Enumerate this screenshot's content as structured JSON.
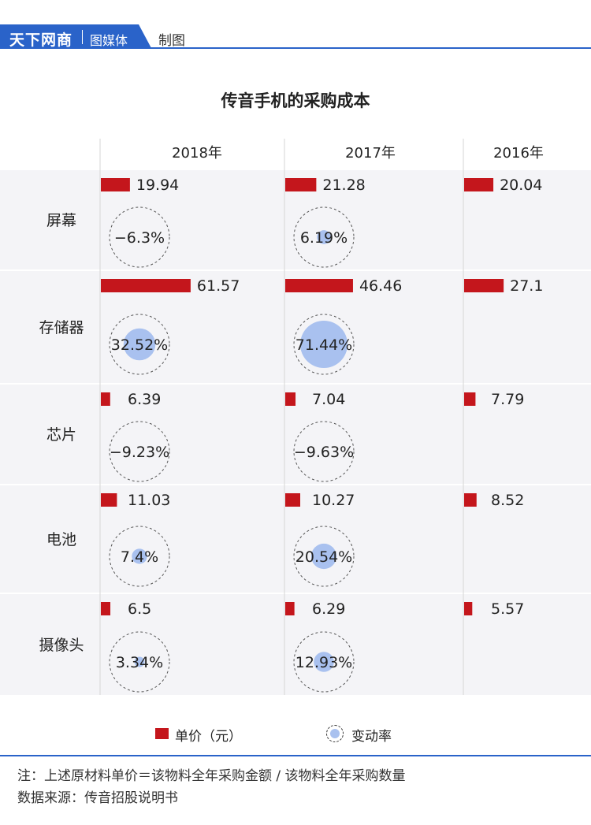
{
  "header": {
    "brand_name": "天下网商",
    "brand_sub": "图媒体",
    "tag": "制图",
    "colors": {
      "brand": "#2a63c9"
    }
  },
  "chart_data": {
    "type": "bar",
    "title": "传音手机的采购成本",
    "columns": [
      "2018年",
      "2017年",
      "2016年"
    ],
    "categories": [
      "屏幕",
      "存储器",
      "芯片",
      "电池",
      "摄像头"
    ],
    "series": [
      {
        "name": "单价（元）",
        "color": "#c4161c",
        "values": [
          [
            19.94,
            21.28,
            20.04
          ],
          [
            61.57,
            46.46,
            27.1
          ],
          [
            6.39,
            7.04,
            7.79
          ],
          [
            11.03,
            10.27,
            8.52
          ],
          [
            6.5,
            6.29,
            5.57
          ]
        ],
        "labels": [
          [
            "19.94",
            "21.28",
            "20.04"
          ],
          [
            "61.57",
            "46.46",
            "27.1"
          ],
          [
            "6.39",
            "7.04",
            "7.79"
          ],
          [
            "11.03",
            "10.27",
            "8.52"
          ],
          [
            "6.5",
            "6.29",
            "5.57"
          ]
        ]
      },
      {
        "name": "变动率",
        "color": "#a9c1ef",
        "values": [
          [
            -6.3,
            6.19
          ],
          [
            32.52,
            71.44
          ],
          [
            -9.23,
            -9.63
          ],
          [
            7.4,
            20.54
          ],
          [
            3.34,
            12.93
          ]
        ],
        "labels": [
          [
            "−6.3%",
            "6.19%"
          ],
          [
            "32.52%",
            "71.44%"
          ],
          [
            "−9.23%",
            "−9.63%"
          ],
          [
            "7.4%",
            "20.54%"
          ],
          [
            "3.34%",
            "12.93%"
          ]
        ]
      }
    ],
    "colors": {
      "row_band": "#f4f4f7",
      "gridline": "#d6d6d6",
      "dashed_ring": "#555555"
    }
  },
  "legend": {
    "bar_label": "单价（元）",
    "circle_label": "变动率"
  },
  "footer": {
    "note": "注：上述原材料单价＝该物料全年采购金额 / 该物料全年采购数量",
    "source": "数据来源：传音招股说明书"
  }
}
